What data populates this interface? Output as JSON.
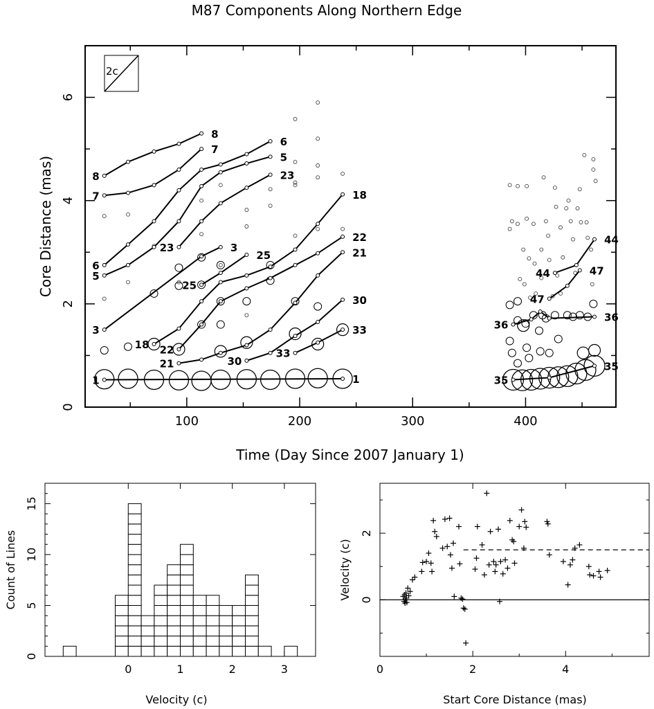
{
  "figure_title": "M87 Components Along Northern Edge",
  "chart_data": [
    {
      "type": "scatter",
      "panel": "main",
      "xlabel": "Time (Day Since 2007 January 1)",
      "ylabel": "Core Distance (mas)",
      "xlim": [
        10,
        480
      ],
      "ylim": [
        0,
        7
      ],
      "xticks": [
        100,
        200,
        300,
        400
      ],
      "yticks": [
        0,
        2,
        4,
        6
      ],
      "inset_label": "2c",
      "grid": false,
      "epochs": [
        27,
        48,
        71,
        93,
        113,
        130,
        153,
        174,
        196,
        216,
        238,
        389,
        397,
        405,
        413,
        421,
        429,
        437,
        445,
        453,
        461
      ],
      "core_distances": [
        0.54,
        0.55,
        0.53,
        0.52,
        0.51,
        0.53,
        0.54,
        0.53,
        0.55,
        0.56,
        0.55,
        0.53,
        0.52,
        0.53,
        0.55,
        0.57,
        0.58,
        0.6,
        0.65,
        0.72,
        0.8
      ],
      "small_points": [
        [
          27,
          3.7
        ],
        [
          27,
          2.1
        ],
        [
          48,
          3.73
        ],
        [
          48,
          2.42
        ],
        [
          71,
          3.12
        ],
        [
          93,
          2.42
        ],
        [
          113,
          4.0
        ],
        [
          113,
          3.35
        ],
        [
          130,
          4.3
        ],
        [
          130,
          2.75
        ],
        [
          153,
          3.82
        ],
        [
          153,
          3.5
        ],
        [
          153,
          1.78
        ],
        [
          174,
          4.22
        ],
        [
          174,
          3.9
        ],
        [
          196,
          5.58
        ],
        [
          196,
          4.75
        ],
        [
          196,
          4.35
        ],
        [
          196,
          4.3
        ],
        [
          196,
          3.32
        ],
        [
          216,
          5.9
        ],
        [
          216,
          5.2
        ],
        [
          216,
          4.68
        ],
        [
          216,
          4.45
        ],
        [
          216,
          3.45
        ],
        [
          238,
          4.52
        ],
        [
          238,
          3.45
        ],
        [
          386,
          4.3
        ],
        [
          386,
          3.45
        ],
        [
          388,
          3.6
        ],
        [
          393,
          4.28
        ],
        [
          393,
          3.55
        ],
        [
          395,
          2.48
        ],
        [
          398,
          3.05
        ],
        [
          399,
          2.38
        ],
        [
          401,
          4.28
        ],
        [
          401,
          3.65
        ],
        [
          403,
          2.88
        ],
        [
          404,
          2.12
        ],
        [
          407,
          3.55
        ],
        [
          408,
          2.78
        ],
        [
          409,
          2.2
        ],
        [
          414,
          3.05
        ],
        [
          414,
          2.5
        ],
        [
          416,
          4.45
        ],
        [
          418,
          3.6
        ],
        [
          420,
          3.32
        ],
        [
          421,
          2.85
        ],
        [
          424,
          2.15
        ],
        [
          426,
          4.25
        ],
        [
          427,
          3.88
        ],
        [
          428,
          2.55
        ],
        [
          431,
          3.48
        ],
        [
          431,
          2.2
        ],
        [
          433,
          2.9
        ],
        [
          436,
          3.85
        ],
        [
          438,
          4.0
        ],
        [
          440,
          3.6
        ],
        [
          442,
          3.25
        ],
        [
          444,
          2.6
        ],
        [
          446,
          3.85
        ],
        [
          448,
          4.22
        ],
        [
          449,
          3.58
        ],
        [
          452,
          4.88
        ],
        [
          454,
          3.58
        ],
        [
          455,
          3.28
        ],
        [
          458,
          3.05
        ],
        [
          459,
          2.38
        ],
        [
          460,
          4.8
        ],
        [
          460,
          4.6
        ],
        [
          462,
          4.38
        ]
      ],
      "medium_points": [
        [
          27,
          1.1
        ],
        [
          48,
          1.17
        ],
        [
          71,
          2.2
        ],
        [
          93,
          2.7
        ],
        [
          93,
          2.35
        ],
        [
          113,
          2.9
        ],
        [
          113,
          2.37
        ],
        [
          113,
          1.6
        ],
        [
          130,
          2.75
        ],
        [
          130,
          2.05
        ],
        [
          130,
          1.6
        ],
        [
          153,
          2.05
        ],
        [
          174,
          2.75
        ],
        [
          174,
          2.45
        ],
        [
          196,
          2.05
        ],
        [
          216,
          1.95
        ],
        [
          386,
          1.98
        ],
        [
          386,
          1.28
        ],
        [
          388,
          1.05
        ],
        [
          393,
          2.05
        ],
        [
          393,
          1.68
        ],
        [
          393,
          0.85
        ],
        [
          400,
          1.62
        ],
        [
          401,
          1.15
        ],
        [
          403,
          0.95
        ],
        [
          407,
          1.78
        ],
        [
          412,
          1.48
        ],
        [
          413,
          1.08
        ],
        [
          415,
          1.78
        ],
        [
          418,
          1.72
        ],
        [
          421,
          1.05
        ],
        [
          426,
          1.78
        ],
        [
          429,
          1.32
        ],
        [
          437,
          1.78
        ],
        [
          442,
          1.75
        ],
        [
          448,
          1.78
        ],
        [
          455,
          1.75
        ],
        [
          460,
          2.0
        ]
      ],
      "large_points": [
        [
          71,
          1.22
        ],
        [
          93,
          1.12
        ],
        [
          130,
          1.08
        ],
        [
          153,
          1.25
        ],
        [
          196,
          1.42
        ],
        [
          216,
          1.22
        ],
        [
          238,
          1.5
        ],
        [
          398,
          1.58
        ],
        [
          451,
          1.05
        ],
        [
          461,
          1.1
        ]
      ],
      "component_tracks": [
        {
          "label": "1",
          "points": [
            [
              27,
              0.53
            ],
            [
              238,
              0.55
            ]
          ]
        },
        {
          "label": "3",
          "points": [
            [
              27,
              1.5
            ],
            [
              113,
              2.92
            ],
            [
              130,
              3.1
            ]
          ]
        },
        {
          "label": "5",
          "points": [
            [
              27,
              2.55
            ],
            [
              48,
              2.75
            ],
            [
              71,
              3.1
            ],
            [
              93,
              3.6
            ],
            [
              113,
              4.28
            ],
            [
              130,
              4.55
            ],
            [
              153,
              4.72
            ],
            [
              174,
              4.85
            ]
          ]
        },
        {
          "label": "6",
          "points": [
            [
              27,
              2.75
            ],
            [
              48,
              3.15
            ],
            [
              71,
              3.6
            ],
            [
              93,
              4.2
            ],
            [
              113,
              4.6
            ],
            [
              130,
              4.7
            ],
            [
              153,
              4.9
            ],
            [
              174,
              5.15
            ]
          ]
        },
        {
          "label": "7",
          "points": [
            [
              27,
              4.1
            ],
            [
              48,
              4.15
            ],
            [
              71,
              4.3
            ],
            [
              93,
              4.6
            ],
            [
              113,
              5.0
            ]
          ]
        },
        {
          "label": "8",
          "points": [
            [
              27,
              4.48
            ],
            [
              48,
              4.75
            ],
            [
              71,
              4.95
            ],
            [
              93,
              5.1
            ],
            [
              113,
              5.3
            ]
          ]
        },
        {
          "label": "18",
          "points": [
            [
              71,
              1.22
            ],
            [
              93,
              1.52
            ],
            [
              113,
              2.05
            ],
            [
              130,
              2.42
            ],
            [
              153,
              2.55
            ],
            [
              174,
              2.72
            ],
            [
              196,
              3.05
            ],
            [
              216,
              3.55
            ],
            [
              238,
              4.12
            ]
          ]
        },
        {
          "label": "21",
          "points": [
            [
              93,
              0.85
            ],
            [
              113,
              0.92
            ],
            [
              130,
              1.05
            ],
            [
              153,
              1.2
            ],
            [
              174,
              1.5
            ],
            [
              196,
              2.02
            ],
            [
              216,
              2.55
            ],
            [
              238,
              3.0
            ]
          ]
        },
        {
          "label": "22",
          "points": [
            [
              93,
              1.12
            ],
            [
              113,
              1.6
            ],
            [
              130,
              2.05
            ],
            [
              153,
              2.3
            ],
            [
              174,
              2.5
            ],
            [
              196,
              2.75
            ],
            [
              216,
              2.98
            ],
            [
              238,
              3.3
            ]
          ]
        },
        {
          "label": "23",
          "points": [
            [
              93,
              3.1
            ],
            [
              113,
              3.6
            ],
            [
              130,
              3.95
            ],
            [
              153,
              4.25
            ],
            [
              174,
              4.5
            ]
          ]
        },
        {
          "label": "25",
          "points": [
            [
              113,
              2.37
            ],
            [
              130,
              2.6
            ],
            [
              153,
              2.95
            ]
          ]
        },
        {
          "label": "30",
          "points": [
            [
              153,
              0.9
            ],
            [
              174,
              1.05
            ],
            [
              196,
              1.38
            ],
            [
              216,
              1.65
            ],
            [
              238,
              2.08
            ]
          ]
        },
        {
          "label": "33",
          "points": [
            [
              196,
              1.05
            ],
            [
              216,
              1.25
            ],
            [
              238,
              1.5
            ]
          ]
        },
        {
          "label": "35",
          "points": [
            [
              389,
              0.53
            ],
            [
              421,
              0.57
            ],
            [
              461,
              0.8
            ]
          ]
        },
        {
          "label": "36",
          "points": [
            [
              389,
              1.6
            ],
            [
              405,
              1.7
            ],
            [
              413,
              1.85
            ],
            [
              421,
              1.72
            ],
            [
              461,
              1.75
            ]
          ]
        },
        {
          "label": "44",
          "points": [
            [
              426,
              2.6
            ],
            [
              445,
              2.75
            ],
            [
              461,
              3.25
            ]
          ]
        },
        {
          "label": "47",
          "points": [
            [
              421,
              2.1
            ],
            [
              437,
              2.35
            ],
            [
              448,
              2.65
            ]
          ]
        }
      ]
    },
    {
      "type": "bar",
      "panel": "histogram",
      "xlabel": "Velocity (c)",
      "ylabel": "Count of Lines",
      "xlim": [
        -1.6,
        3.6
      ],
      "ylim": [
        0,
        17
      ],
      "xticks": [
        0,
        1,
        2,
        3
      ],
      "yticks": [
        0,
        5,
        10,
        15
      ],
      "bin_width": 0.25,
      "bin_starts": [
        -1.25,
        -0.25,
        0.0,
        0.25,
        0.5,
        0.75,
        1.0,
        1.25,
        1.5,
        1.75,
        2.0,
        2.25,
        2.5,
        3.0
      ],
      "counts": [
        1,
        6,
        15,
        4,
        7,
        9,
        11,
        6,
        6,
        5,
        5,
        8,
        1,
        1
      ]
    },
    {
      "type": "scatter",
      "panel": "velocity",
      "xlabel": "Start Core Distance (mas)",
      "ylabel": "Velocity (c)",
      "xlim": [
        0,
        5.8
      ],
      "ylim": [
        -1.7,
        3.5
      ],
      "xticks": [
        0,
        2,
        4
      ],
      "yticks": [
        0,
        2
      ],
      "dashed_level": 1.5,
      "dashed_from": 1.8,
      "solid_level": 0,
      "points": [
        [
          0.5,
          0.1
        ],
        [
          0.52,
          -0.05
        ],
        [
          0.53,
          0.15
        ],
        [
          0.54,
          -0.1
        ],
        [
          0.55,
          0.0
        ],
        [
          0.56,
          0.2
        ],
        [
          0.57,
          0.05
        ],
        [
          0.58,
          -0.08
        ],
        [
          0.6,
          0.35
        ],
        [
          0.62,
          0.12
        ],
        [
          0.65,
          0.25
        ],
        [
          0.7,
          0.6
        ],
        [
          0.75,
          0.68
        ],
        [
          0.9,
          0.85
        ],
        [
          0.92,
          1.12
        ],
        [
          1.0,
          1.15
        ],
        [
          1.05,
          1.4
        ],
        [
          1.1,
          1.1
        ],
        [
          1.12,
          0.85
        ],
        [
          1.15,
          2.38
        ],
        [
          1.18,
          2.05
        ],
        [
          1.22,
          1.9
        ],
        [
          1.35,
          1.55
        ],
        [
          1.4,
          2.42
        ],
        [
          1.45,
          1.6
        ],
        [
          1.5,
          2.45
        ],
        [
          1.52,
          1.35
        ],
        [
          1.55,
          0.95
        ],
        [
          1.58,
          1.7
        ],
        [
          1.6,
          0.1
        ],
        [
          1.7,
          2.2
        ],
        [
          1.72,
          1.08
        ],
        [
          1.75,
          0.05
        ],
        [
          1.78,
          0.02
        ],
        [
          1.8,
          -0.25
        ],
        [
          1.83,
          -0.28
        ],
        [
          1.85,
          -1.3
        ],
        [
          2.05,
          0.92
        ],
        [
          2.08,
          1.25
        ],
        [
          2.1,
          2.2
        ],
        [
          2.2,
          1.65
        ],
        [
          2.25,
          0.75
        ],
        [
          2.3,
          3.2
        ],
        [
          2.35,
          1.05
        ],
        [
          2.38,
          2.05
        ],
        [
          2.45,
          1.15
        ],
        [
          2.48,
          0.85
        ],
        [
          2.5,
          1.05
        ],
        [
          2.55,
          2.12
        ],
        [
          2.58,
          -0.05
        ],
        [
          2.6,
          1.15
        ],
        [
          2.65,
          0.78
        ],
        [
          2.7,
          1.2
        ],
        [
          2.75,
          0.95
        ],
        [
          2.8,
          2.38
        ],
        [
          2.85,
          1.8
        ],
        [
          2.88,
          1.75
        ],
        [
          2.9,
          1.1
        ],
        [
          3.0,
          2.2
        ],
        [
          3.05,
          2.7
        ],
        [
          3.1,
          1.55
        ],
        [
          3.12,
          2.35
        ],
        [
          3.15,
          2.18
        ],
        [
          3.6,
          2.35
        ],
        [
          3.62,
          2.28
        ],
        [
          3.65,
          1.35
        ],
        [
          3.95,
          1.15
        ],
        [
          4.05,
          0.45
        ],
        [
          4.1,
          1.05
        ],
        [
          4.15,
          1.2
        ],
        [
          4.2,
          1.55
        ],
        [
          4.3,
          1.65
        ],
        [
          4.5,
          1.0
        ],
        [
          4.52,
          0.75
        ],
        [
          4.6,
          0.72
        ],
        [
          4.72,
          0.85
        ],
        [
          4.75,
          0.68
        ],
        [
          4.9,
          0.88
        ]
      ]
    }
  ]
}
